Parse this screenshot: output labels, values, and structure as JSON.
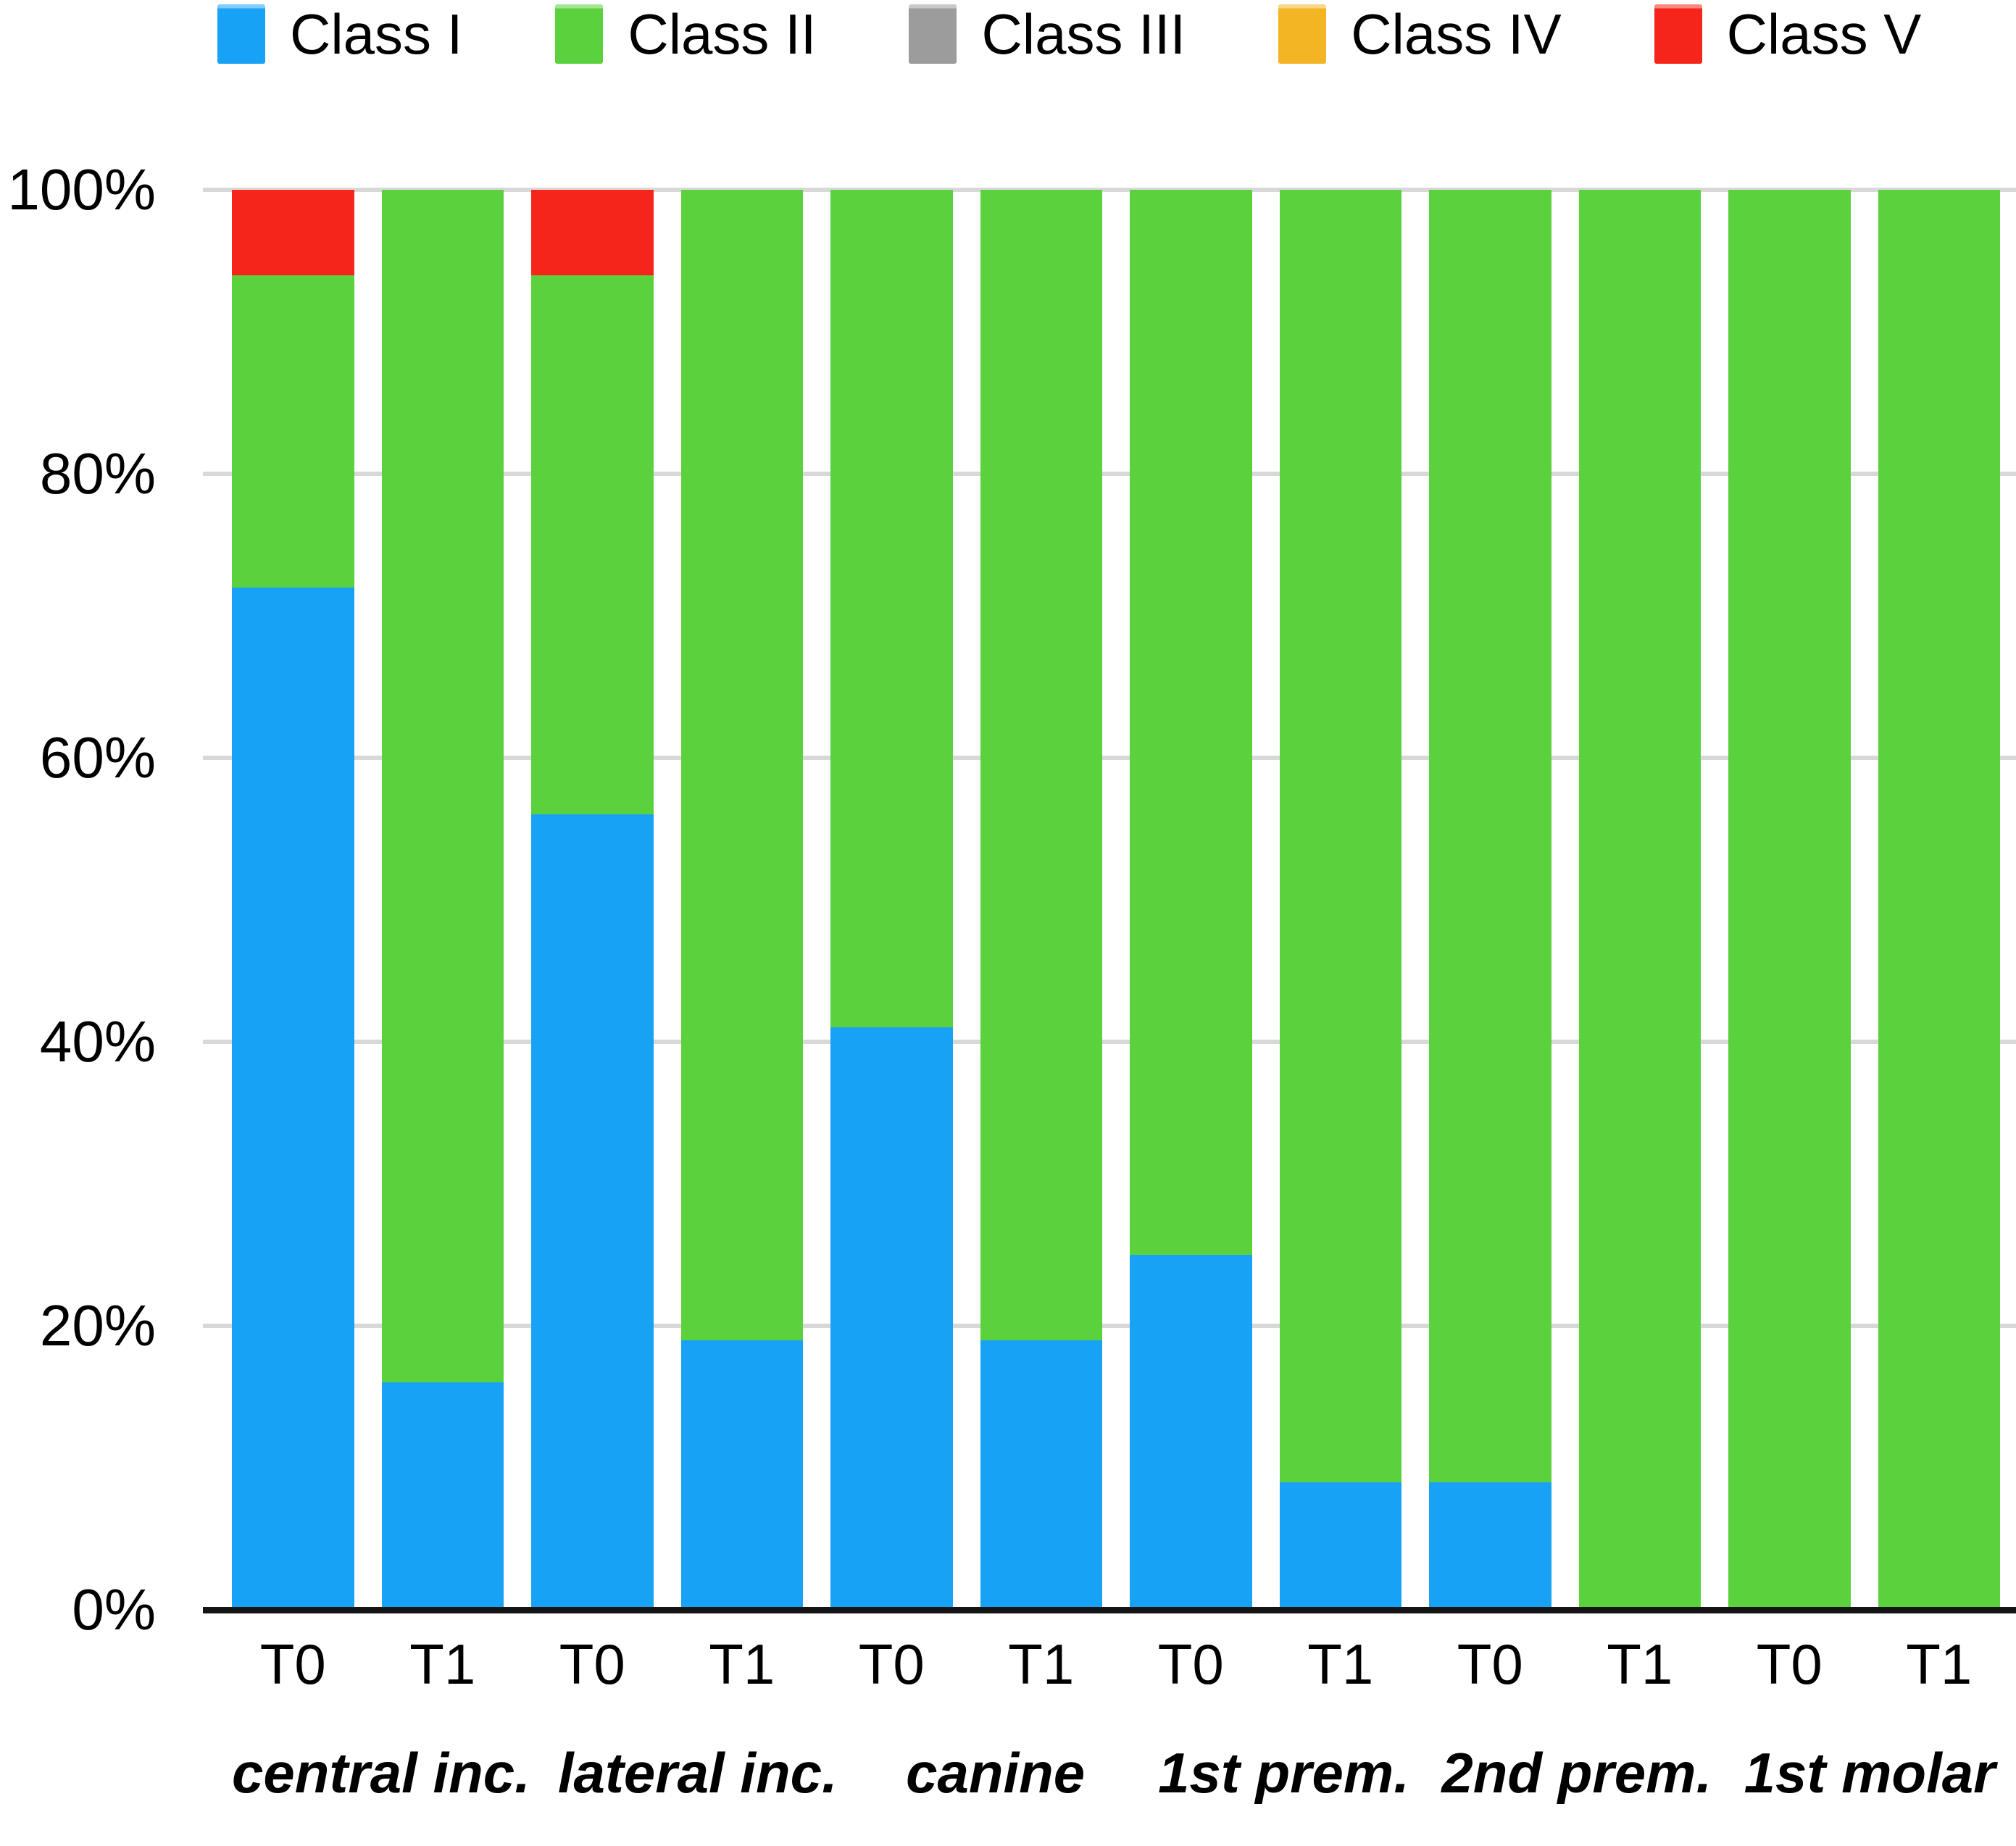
{
  "colors": {
    "class_i_blue": "#18A2F6",
    "class_ii_green": "#5BD23D",
    "class_iii_gray": "#9C9C9C",
    "class_iv_gold": "#F4B525",
    "class_v_red": "#F6251C",
    "gridline": "#D8D8D8",
    "axis_line": "#141414",
    "text": "#000000"
  },
  "chart_data": {
    "type": "bar",
    "stacked": true,
    "unit": "percent",
    "title": "",
    "xlabel": "",
    "ylabel": "",
    "ylim": [
      0,
      100
    ],
    "grid": "horizontal",
    "legend_position": "top",
    "yticks": [
      {
        "value": 0,
        "label": "0%"
      },
      {
        "value": 20,
        "label": "20%"
      },
      {
        "value": 40,
        "label": "40%"
      },
      {
        "value": 60,
        "label": "60%"
      },
      {
        "value": 80,
        "label": "80%"
      },
      {
        "value": 100,
        "label": "100%"
      }
    ],
    "groups": [
      "central inc.",
      "lateral inc.",
      "canine",
      "1st prem.",
      "2nd prem.",
      "1st molar"
    ],
    "bar_tick_labels": [
      "T0",
      "T1",
      "T0",
      "T1",
      "T0",
      "T1",
      "T0",
      "T1",
      "T0",
      "T1",
      "T0",
      "T1"
    ],
    "series": [
      {
        "name": "Class I",
        "color": "#18A2F6",
        "values": [
          72,
          16,
          56,
          19,
          41,
          19,
          25,
          9,
          9,
          0,
          0,
          0
        ]
      },
      {
        "name": "Class II",
        "color": "#5BD23D",
        "values": [
          22,
          84,
          38,
          81,
          59,
          81,
          75,
          91,
          91,
          100,
          100,
          100
        ]
      },
      {
        "name": "Class III",
        "color": "#9C9C9C",
        "values": [
          0,
          0,
          0,
          0,
          0,
          0,
          0,
          0,
          0,
          0,
          0,
          0
        ]
      },
      {
        "name": "Class IV",
        "color": "#F4B525",
        "values": [
          0,
          0,
          0,
          0,
          0,
          0,
          0,
          0,
          0,
          0,
          0,
          0
        ]
      },
      {
        "name": "Class V",
        "color": "#F6251C",
        "values": [
          6,
          0,
          6,
          0,
          0,
          0,
          0,
          0,
          0,
          0,
          0,
          0
        ]
      }
    ]
  }
}
